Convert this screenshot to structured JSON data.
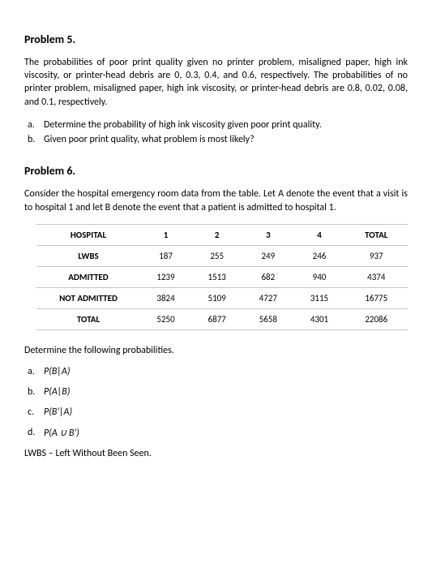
{
  "problem5": {
    "title": "Problem 5.",
    "paragraph": "The probabilities of poor print quality given no printer problem, misaligned paper, high ink viscosity, or printer-head debris are 0, 0.3, 0.4, and 0.6, respectively. The probabilities of no printer problem, misaligned paper, high ink viscosity, or printer-head debris are 0.8, 0.02, 0.08, and 0.1, respectively.",
    "parts": [
      {
        "letter": "a.",
        "text": "Determine the probability of high ink viscosity given poor print quality."
      },
      {
        "letter": "b.",
        "text": "Given poor print quality, what problem is most likely?"
      }
    ]
  },
  "problem6": {
    "title": "Problem 6.",
    "paragraph": "Consider the hospital emergency room data from the table. Let A denote the event that a visit is to hospital 1 and let B denote the event that a patient is admitted to hospital 1.",
    "table": {
      "headers": [
        "HOSPITAL",
        "1",
        "2",
        "3",
        "4",
        "TOTAL"
      ],
      "rows": [
        [
          "LWBS",
          "187",
          "255",
          "249",
          "246",
          "937"
        ],
        [
          "ADMITTED",
          "1239",
          "1513",
          "682",
          "940",
          "4374"
        ],
        [
          "NOT ADMITTED",
          "3824",
          "5109",
          "4727",
          "3115",
          "16775"
        ],
        [
          "TOTAL",
          "5250",
          "6877",
          "5658",
          "4301",
          "22086"
        ]
      ]
    },
    "determine": "Determine the following probabilities.",
    "parts": [
      {
        "letter": "a.",
        "expr": "P(B|A)"
      },
      {
        "letter": "b.",
        "expr": "P(A|B)"
      },
      {
        "letter": "c.",
        "expr": "P(B'|A)"
      },
      {
        "letter": "d.",
        "expr": "P(A ∪ B')"
      }
    ],
    "footnote": "LWBS – Left Without Been Seen."
  }
}
